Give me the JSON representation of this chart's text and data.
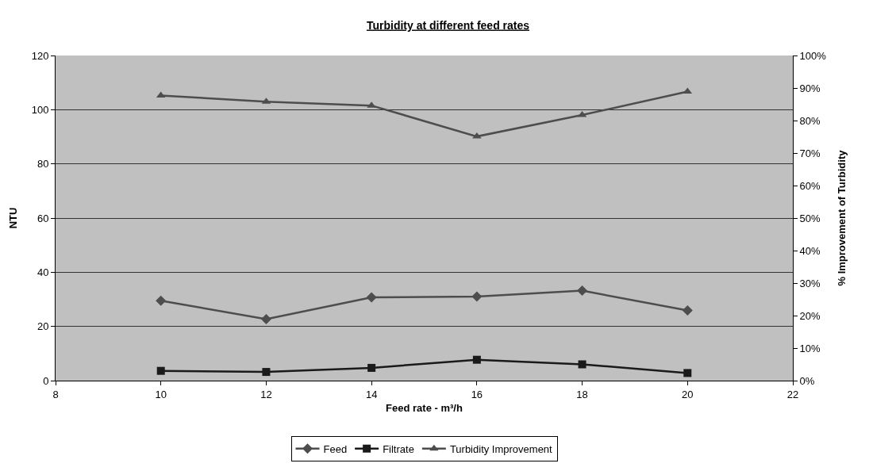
{
  "chart_data": {
    "type": "line",
    "title": "Turbidity at different feed rates",
    "xlabel": "Feed rate - m³/h",
    "ylabel": "NTU",
    "y2label": "% Improvement of Turbidity",
    "x": [
      10,
      12,
      14,
      16,
      18,
      20
    ],
    "series": [
      {
        "name": "Feed",
        "color": "#4d4d4d",
        "marker": "diamond",
        "values": [
          29.5,
          22.7,
          30.7,
          31.0,
          33.2,
          25.9
        ]
      },
      {
        "name": "Filtrate",
        "color": "#1a1a1a",
        "marker": "square",
        "values": [
          3.6,
          3.2,
          4.7,
          7.7,
          6.0,
          2.8
        ]
      },
      {
        "name": "Turbidity Improvement",
        "color": "#4d4d4d",
        "marker": "triangle",
        "axis": "y2",
        "values": [
          87.7,
          85.8,
          84.6,
          75.1,
          81.7,
          88.9
        ]
      }
    ],
    "xlim": [
      8,
      22
    ],
    "xticks": [
      8,
      10,
      12,
      14,
      16,
      18,
      20,
      22
    ],
    "ylim": [
      0,
      120
    ],
    "yticks": [
      0,
      20,
      40,
      60,
      80,
      100,
      120
    ],
    "y2lim": [
      0,
      100
    ],
    "y2ticks": [
      {
        "value": 0,
        "label": "0%"
      },
      {
        "value": 10,
        "label": "10%"
      },
      {
        "value": 20,
        "label": "20%"
      },
      {
        "value": 30,
        "label": "30%"
      },
      {
        "value": 40,
        "label": "40%"
      },
      {
        "value": 50,
        "label": "50%"
      },
      {
        "value": 60,
        "label": "60%"
      },
      {
        "value": 70,
        "label": "70%"
      },
      {
        "value": 80,
        "label": "80%"
      },
      {
        "value": 90,
        "label": "90%"
      },
      {
        "value": 100,
        "label": "100%"
      }
    ],
    "grid": "y",
    "legend": "bottom",
    "line_style": "solid"
  }
}
